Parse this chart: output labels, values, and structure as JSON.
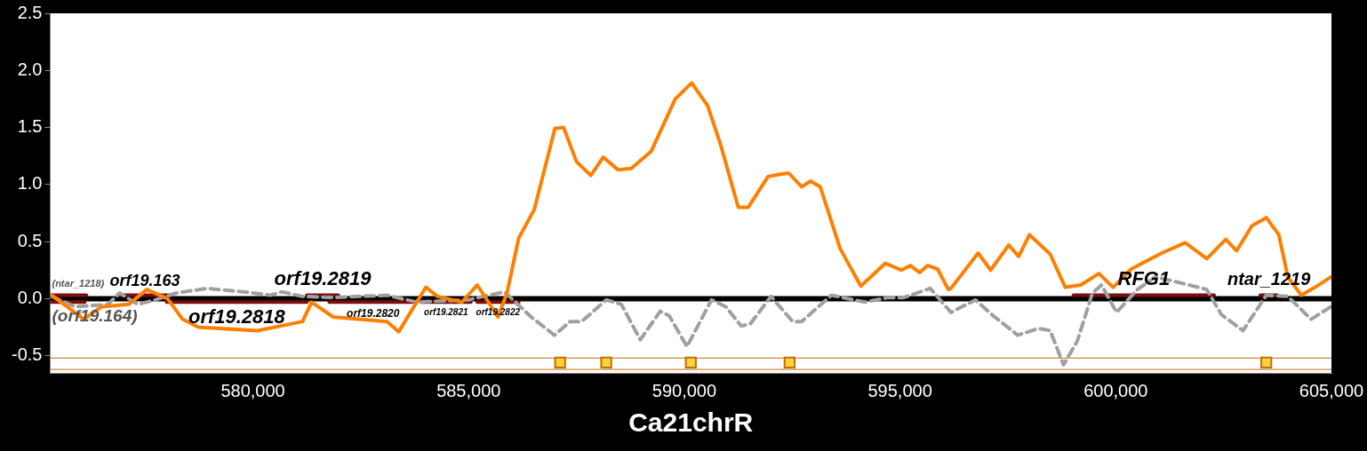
{
  "chart_data": {
    "type": "line",
    "xlabel": "Ca21chrR",
    "xlim": [
      575300,
      605000
    ],
    "ylim": [
      -0.65,
      2.5
    ],
    "xticks": [
      {
        "value": 580000,
        "label": "580,000"
      },
      {
        "value": 585000,
        "label": "585,000"
      },
      {
        "value": 590000,
        "label": "590,000"
      },
      {
        "value": 595000,
        "label": "595,000"
      },
      {
        "value": 600000,
        "label": "600,000"
      },
      {
        "value": 605000,
        "label": "605,000"
      }
    ],
    "yticks": [
      -0.5,
      {
        "value": 0,
        "label": "0.0"
      },
      0.5,
      {
        "value": 1,
        "label": "1.0"
      },
      1.5,
      {
        "value": 2,
        "label": "2.0"
      },
      2.5
    ],
    "grid": false,
    "legend": false,
    "series": [
      {
        "color": "#ff8000",
        "line_style": "solid",
        "x": [
          575340,
          576080,
          576490,
          577120,
          577540,
          578020,
          578370,
          578730,
          580100,
          581150,
          581360,
          581860,
          583110,
          583380,
          583650,
          584010,
          584280,
          584840,
          585200,
          585680,
          585890,
          586160,
          586520,
          587000,
          587200,
          587500,
          587830,
          588120,
          588460,
          588770,
          589230,
          589790,
          590170,
          590540,
          590840,
          591250,
          591480,
          591940,
          592220,
          592420,
          592720,
          592930,
          593150,
          593610,
          594090,
          594660,
          595030,
          595240,
          595450,
          595640,
          595870,
          596120,
          596180,
          596810,
          597100,
          597520,
          597750,
          598000,
          598480,
          598830,
          599190,
          599610,
          599940,
          600360,
          601070,
          601610,
          602110,
          602550,
          602800,
          603160,
          603490,
          603780,
          603990,
          604300,
          604620,
          604990
        ],
        "values": [
          0.03,
          -0.18,
          -0.07,
          -0.05,
          0.08,
          0,
          -0.18,
          -0.25,
          -0.28,
          -0.2,
          -0.03,
          -0.16,
          -0.2,
          -0.29,
          -0.12,
          0.1,
          0.02,
          -0.03,
          0.12,
          -0.16,
          0.05,
          0.53,
          0.78,
          1.49,
          1.5,
          1.2,
          1.08,
          1.24,
          1.13,
          1.14,
          1.29,
          1.75,
          1.89,
          1.69,
          1.35,
          0.8,
          0.8,
          1.07,
          1.09,
          1.1,
          0.98,
          1.03,
          0.98,
          0.44,
          0.11,
          0.31,
          0.25,
          0.29,
          0.23,
          0.29,
          0.26,
          0.08,
          0.09,
          0.4,
          0.25,
          0.47,
          0.37,
          0.56,
          0.39,
          0.1,
          0.12,
          0.22,
          0.1,
          0.26,
          0.4,
          0.49,
          0.35,
          0.52,
          0.42,
          0.64,
          0.71,
          0.56,
          0.19,
          0.03,
          0.1,
          0.19
        ]
      },
      {
        "color": "#a0a0a0",
        "line_style": "dashed",
        "x": [
          575340,
          575870,
          576640,
          576910,
          577330,
          577740,
          578230,
          578940,
          579770,
          580400,
          580670,
          581150,
          581860,
          583110,
          583800,
          584990,
          585830,
          586450,
          586990,
          587350,
          587620,
          588190,
          588540,
          588980,
          589440,
          589650,
          590060,
          590630,
          590960,
          591320,
          591530,
          592010,
          592510,
          592720,
          593410,
          594180,
          594720,
          595080,
          595700,
          596180,
          596750,
          597160,
          597730,
          598210,
          598480,
          598790,
          599110,
          599460,
          599670,
          600020,
          600500,
          600920,
          601490,
          602110,
          602450,
          602950,
          603490,
          603990,
          604530,
          604990
        ],
        "values": [
          0.02,
          -0.07,
          -0.05,
          0.05,
          -0.05,
          -0.01,
          0.05,
          0.09,
          0.06,
          0.03,
          0.06,
          0.02,
          0.01,
          0.03,
          -0.03,
          -0.01,
          0.06,
          -0.16,
          -0.32,
          -0.2,
          -0.2,
          -0.01,
          -0.05,
          -0.36,
          -0.11,
          -0.15,
          -0.42,
          -0.01,
          -0.07,
          -0.24,
          -0.22,
          0.02,
          -0.2,
          -0.2,
          0.03,
          -0.03,
          0.01,
          0.01,
          0.09,
          -0.12,
          -0.01,
          -0.15,
          -0.32,
          -0.26,
          -0.28,
          -0.58,
          -0.37,
          0.05,
          0.12,
          -0.12,
          0.08,
          0.19,
          0.14,
          0.08,
          -0.14,
          -0.28,
          0.03,
          0.02,
          -0.18,
          -0.07
        ]
      },
      {
        "type": "scatter",
        "color": "#ffd040",
        "marker": "square",
        "x": [
          587120,
          588190,
          590150,
          592440,
          603490
        ],
        "values": [
          -0.56,
          -0.56,
          -0.56,
          -0.56,
          -0.56
        ]
      },
      {
        "name": "(ntar_1218)",
        "color": "#7b0e0e",
        "x": [
          575300,
          576140
        ],
        "values": [
          0.03,
          0.03
        ]
      },
      {
        "name": "orf19.163",
        "color": "#7b0e0e",
        "x": [
          576870,
          578120
        ],
        "values": [
          0.03,
          0.03
        ]
      },
      {
        "name": "orf19.2819",
        "color": "#7b0e0e",
        "x": [
          581250,
          581980
        ],
        "values": [
          0.03,
          0.03
        ]
      },
      {
        "name": "RFG1",
        "color": "#7b0e0e",
        "x": [
          599020,
          602280
        ],
        "values": [
          0.03,
          0.03
        ]
      },
      {
        "name": "ntar_1219",
        "color": "#7b0e0e",
        "x": [
          603350,
          603750
        ],
        "values": [
          0.03,
          0.03
        ]
      },
      {
        "name": "(orf19.164)",
        "color": "#7b0e0e",
        "x": [
          575300,
          576100
        ],
        "values": [
          -0.03,
          -0.03
        ]
      },
      {
        "name": "orf19.2818",
        "color": "#7b0e0e",
        "x": [
          578000,
          581250
        ],
        "values": [
          -0.03,
          -0.03
        ]
      },
      {
        "name": "orf19.2820",
        "color": "#7b0e0e",
        "x": [
          581770,
          583800
        ],
        "values": [
          -0.03,
          -0.03
        ]
      },
      {
        "name": "orf19.2821",
        "color": "#7b0e0e",
        "x": [
          583900,
          585050
        ],
        "values": [
          -0.03,
          -0.03
        ]
      },
      {
        "name": "orf19.2822",
        "color": "#7b0e0e",
        "x": [
          585200,
          586160
        ],
        "values": [
          -0.03,
          -0.03
        ]
      }
    ],
    "ref_lines": [
      {
        "axis": "y",
        "value": 0,
        "color": "#000000"
      },
      {
        "axis": "y",
        "value": -0.52,
        "color": "#d08a40"
      },
      {
        "axis": "y",
        "value": -0.62,
        "color": "#d08a40"
      }
    ]
  }
}
